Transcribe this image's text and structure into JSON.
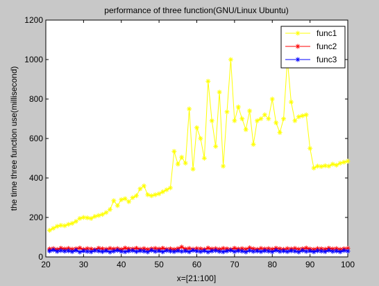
{
  "chart_data": {
    "type": "line",
    "title": "performance of three function(GNU/Linux Ubuntu)",
    "xlabel": "x=[21:100]",
    "ylabel": "the time three function use(millisecond)",
    "xlim": [
      20,
      100
    ],
    "ylim": [
      0,
      1200
    ],
    "xticks": [
      20,
      30,
      40,
      50,
      60,
      70,
      80,
      90,
      100
    ],
    "yticks": [
      0,
      200,
      400,
      600,
      800,
      1000,
      1200
    ],
    "grid": false,
    "legend_position": "top-right",
    "marker": "*",
    "x": [
      21,
      22,
      23,
      24,
      25,
      26,
      27,
      28,
      29,
      30,
      31,
      32,
      33,
      34,
      35,
      36,
      37,
      38,
      39,
      40,
      41,
      42,
      43,
      44,
      45,
      46,
      47,
      48,
      49,
      50,
      51,
      52,
      53,
      54,
      55,
      56,
      57,
      58,
      59,
      60,
      61,
      62,
      63,
      64,
      65,
      66,
      67,
      68,
      69,
      70,
      71,
      72,
      73,
      74,
      75,
      76,
      77,
      78,
      79,
      80,
      81,
      82,
      83,
      84,
      85,
      86,
      87,
      88,
      89,
      90,
      91,
      92,
      93,
      94,
      95,
      96,
      97,
      98,
      99,
      100
    ],
    "series": [
      {
        "name": "func1",
        "color": "#ffff00",
        "values": [
          135,
          145,
          155,
          160,
          158,
          165,
          170,
          180,
          195,
          200,
          198,
          195,
          205,
          210,
          215,
          225,
          240,
          285,
          260,
          290,
          295,
          280,
          300,
          310,
          345,
          360,
          315,
          310,
          315,
          320,
          330,
          340,
          350,
          535,
          470,
          505,
          475,
          750,
          445,
          655,
          600,
          500,
          890,
          690,
          560,
          835,
          460,
          735,
          1000,
          690,
          760,
          700,
          645,
          740,
          570,
          690,
          700,
          720,
          700,
          800,
          680,
          630,
          700,
          1000,
          785,
          690,
          710,
          715,
          720,
          550,
          450,
          460,
          458,
          462,
          460,
          470,
          465,
          475,
          480,
          485
        ]
      },
      {
        "name": "func2",
        "color": "#ff0000",
        "values": [
          40,
          42,
          38,
          44,
          40,
          43,
          39,
          41,
          45,
          38,
          42,
          40,
          37,
          44,
          41,
          39,
          43,
          40,
          42,
          38,
          45,
          41,
          40,
          44,
          39,
          42,
          38,
          41,
          43,
          40,
          44,
          39,
          41,
          38,
          42,
          50,
          40,
          43,
          39,
          42,
          41,
          38,
          45,
          40,
          42,
          39,
          43,
          41,
          38,
          44,
          40,
          42,
          39,
          46,
          41,
          38,
          43,
          40,
          42,
          39,
          44,
          41,
          38,
          42,
          40,
          43,
          39,
          41,
          45,
          40,
          38,
          42,
          41,
          39,
          44,
          40,
          42,
          38,
          41,
          43
        ]
      },
      {
        "name": "func3",
        "color": "#0000ff",
        "values": [
          30,
          35,
          28,
          32,
          29,
          31,
          27,
          33,
          25,
          30,
          28,
          26,
          32,
          30,
          27,
          31,
          25,
          29,
          33,
          28,
          26,
          30,
          32,
          27,
          31,
          29,
          25,
          33,
          28,
          30,
          26,
          32,
          29,
          27,
          31,
          28,
          30,
          26,
          33,
          29,
          27,
          31,
          25,
          30,
          32,
          28,
          26,
          30,
          33,
          27,
          31,
          29,
          25,
          32,
          28,
          30,
          27,
          31,
          29,
          26,
          33,
          28,
          30,
          27,
          31,
          29,
          25,
          32,
          28,
          30,
          26,
          31,
          29,
          27,
          33,
          28,
          30,
          26,
          32,
          29
        ]
      }
    ]
  }
}
